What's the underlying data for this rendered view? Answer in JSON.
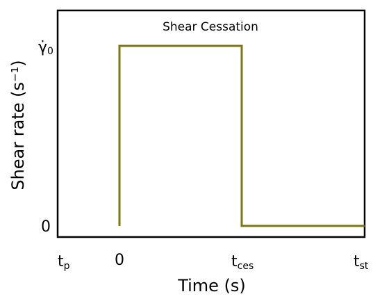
{
  "chart_data": {
    "type": "line",
    "title": "Shear Cessation",
    "xlabel": "Time (s)",
    "ylabel": "Shear rate (s⁻¹)",
    "series": [
      {
        "x": [
          "0",
          "0",
          "t_ces",
          "t_ces",
          "t_st"
        ],
        "y": [
          "0",
          "γ̇0",
          "γ̇0",
          "0",
          "0"
        ],
        "color": "#7d7614"
      }
    ],
    "x_ticks": [
      {
        "main": "t",
        "sub": "p"
      },
      {
        "main": "0",
        "sub": ""
      },
      {
        "main": "t",
        "sub": "ces"
      },
      {
        "main": "t",
        "sub": "st"
      }
    ],
    "y_ticks": [
      {
        "main": "γ̇",
        "sub": "0"
      },
      {
        "main": "0",
        "sub": ""
      }
    ]
  }
}
